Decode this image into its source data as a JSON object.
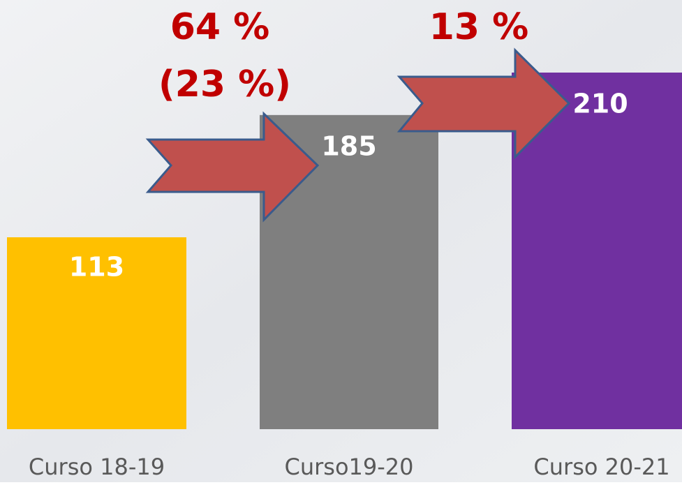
{
  "chart_data": {
    "type": "bar",
    "categories": [
      "Curso 18-19",
      "Curso19-20",
      "Curso 20-21"
    ],
    "values": [
      113,
      185,
      210
    ],
    "colors": [
      "#ffc000",
      "#7f7f7f",
      "#7030a0"
    ],
    "annotations": [
      "64 %",
      "(23 %)",
      "13 %"
    ]
  }
}
